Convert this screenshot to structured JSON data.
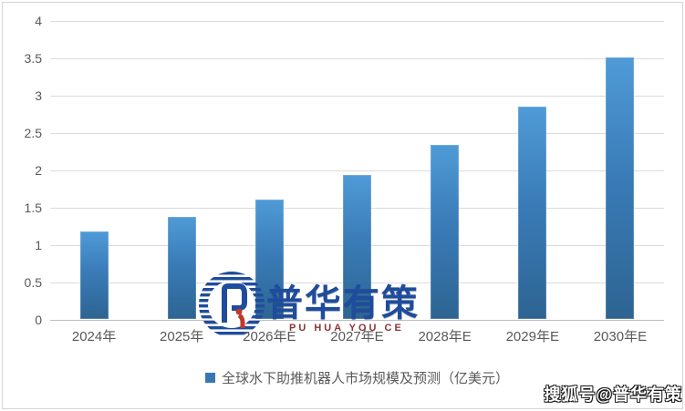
{
  "chart_data": {
    "type": "bar",
    "categories": [
      "2024年",
      "2025年",
      "2026年E",
      "2027年E",
      "2028年E",
      "2029年E",
      "2030年E"
    ],
    "values": [
      1.17,
      1.37,
      1.6,
      1.93,
      2.33,
      2.84,
      3.5
    ],
    "series_name": "全球水下助推机器人市场规模及预测（亿美元）",
    "title": "",
    "xlabel": "",
    "ylabel": "",
    "ylim": [
      0,
      4
    ],
    "ytick_step": 0.5,
    "ytick_labels": [
      "0",
      "0.5",
      "1",
      "1.5",
      "2",
      "2.5",
      "3",
      "3.5",
      "4"
    ],
    "grid": true,
    "legend_position": "bottom",
    "bar_color_top": "#4f9bd7",
    "bar_color_bottom": "#2d6492",
    "legend_marker_color": "#3778b3",
    "axis_text_color": "#595959",
    "gridline_color": "#dcdcdc"
  },
  "watermark": {
    "brand_cn": "普华有策",
    "brand_en": "PU HUA YOU CE",
    "logo_blue": "#1f4c9c",
    "logo_red": "#c0392b"
  },
  "footer_watermark": {
    "text": "搜狐号@普华有策"
  }
}
